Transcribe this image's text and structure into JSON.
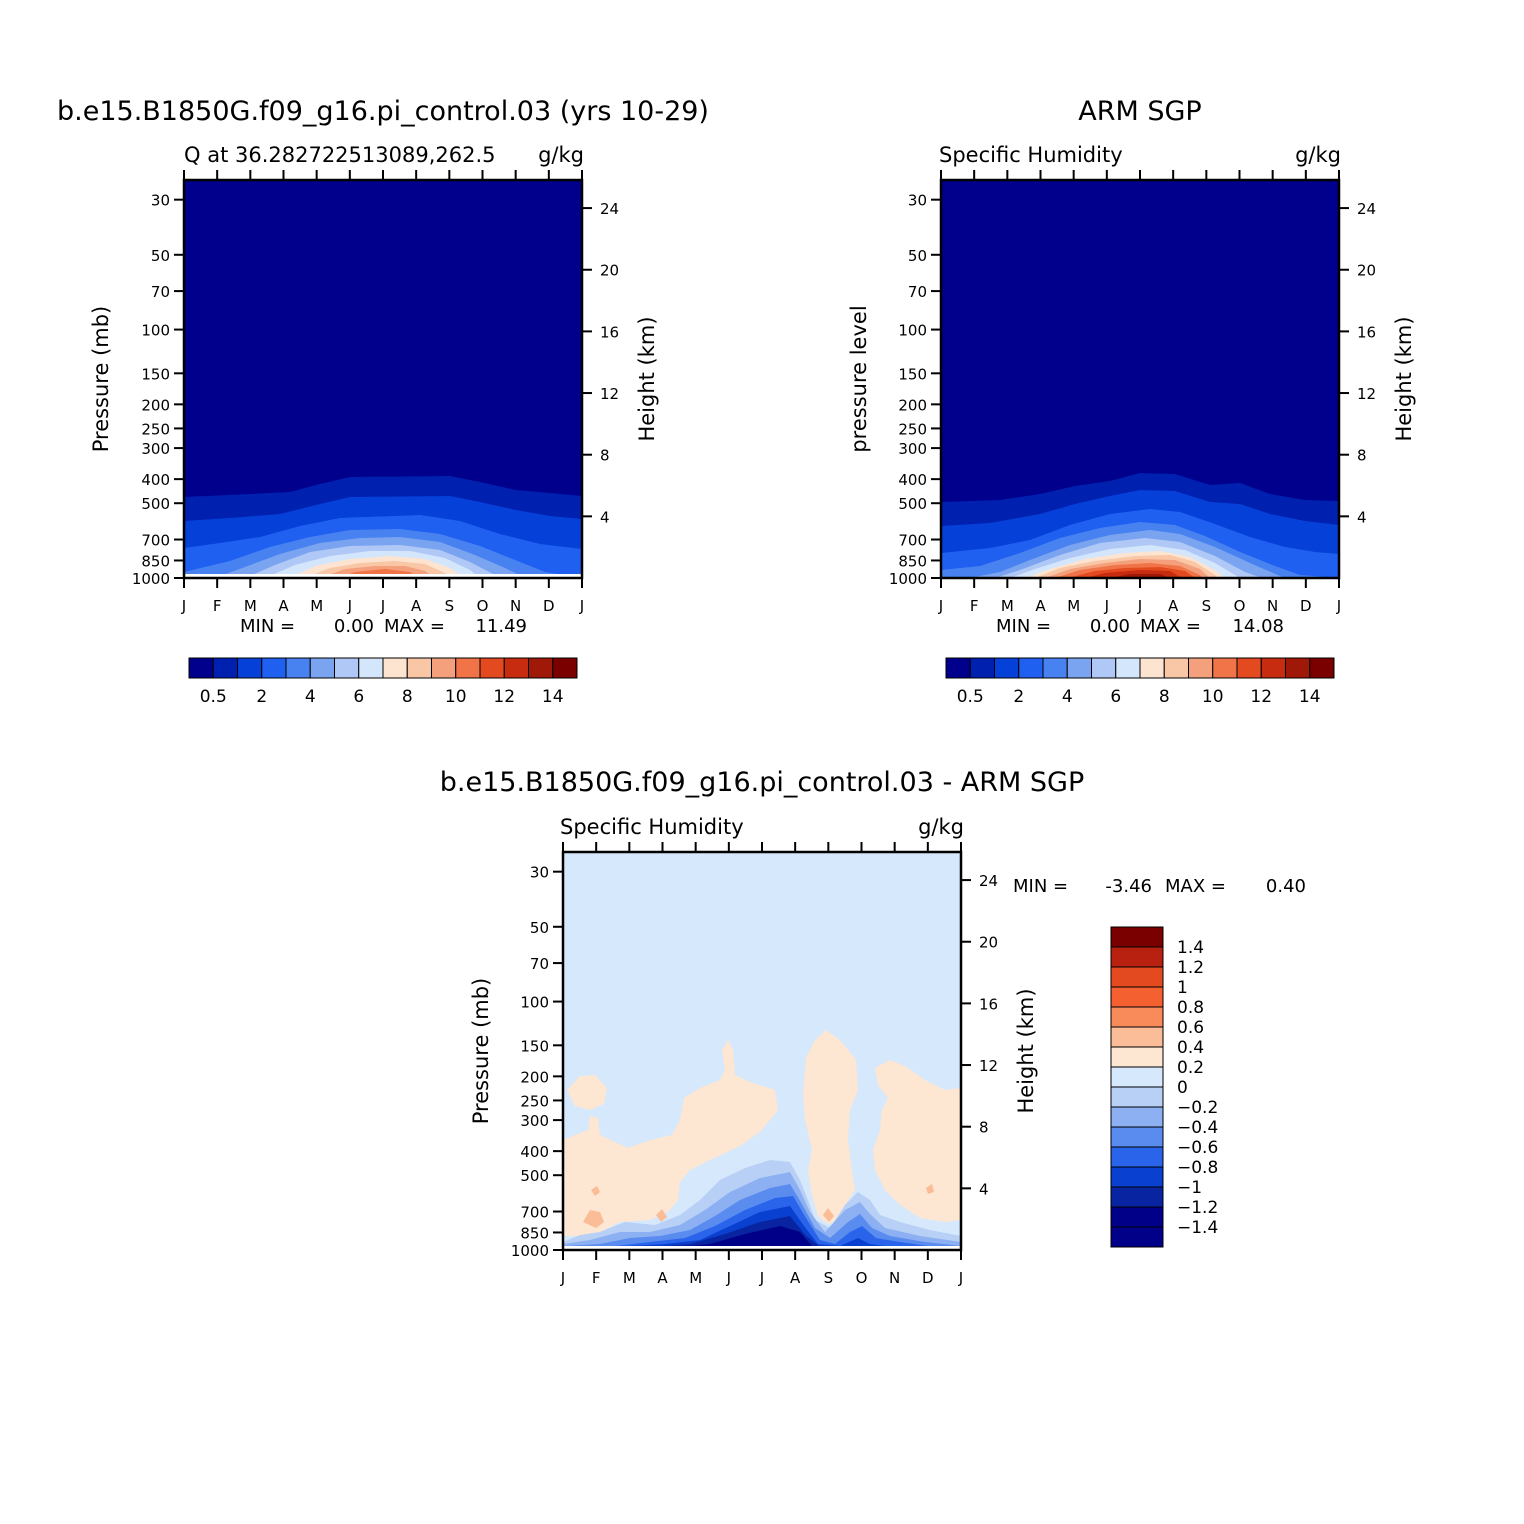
{
  "chart_data": [
    {
      "type": "heatmap",
      "title": "b.e15.B1850G.f09_g16.pi_control.03 (yrs 10-29)",
      "subtitle_left": "Q at 36.282722513089,262.5",
      "subtitle_right": "g/kg",
      "xlabel": "",
      "ylabel": "Pressure (mb)",
      "ylabel_right": "Height (km)",
      "x": [
        "J",
        "F",
        "M",
        "A",
        "M",
        "J",
        "J",
        "A",
        "S",
        "O",
        "N",
        "D",
        "J"
      ],
      "y_ticks": [
        "30",
        "50",
        "70",
        "100",
        "150",
        "200",
        "250",
        "300",
        "400",
        "500",
        "700",
        "850",
        "1000"
      ],
      "y_ticks_right": [
        "24",
        "20",
        "16",
        "12",
        "8",
        "4"
      ],
      "ylim": [
        1000,
        25
      ],
      "stats": {
        "min_label": "MIN =",
        "min": "0.00",
        "max_label": "MAX =",
        "max": "11.49"
      },
      "colorbar": {
        "ticks": [
          "0.5",
          "2",
          "4",
          "6",
          "8",
          "10",
          "12",
          "14"
        ]
      },
      "approx_surface_max_by_month": [
        3.5,
        4.5,
        5.5,
        7,
        9,
        11,
        11.49,
        10,
        8,
        6,
        4.5,
        3.5,
        3.5
      ]
    },
    {
      "type": "heatmap",
      "title": "ARM SGP",
      "subtitle_left": "Specific Humidity",
      "subtitle_right": "g/kg",
      "xlabel": "",
      "ylabel": "pressure level",
      "ylabel_right": "Height (km)",
      "x": [
        "J",
        "F",
        "M",
        "A",
        "M",
        "J",
        "J",
        "A",
        "S",
        "O",
        "N",
        "D",
        "J"
      ],
      "y_ticks": [
        "30",
        "50",
        "70",
        "100",
        "150",
        "200",
        "250",
        "300",
        "400",
        "500",
        "700",
        "850",
        "1000"
      ],
      "y_ticks_right": [
        "24",
        "20",
        "16",
        "12",
        "8",
        "4"
      ],
      "ylim": [
        1000,
        25
      ],
      "stats": {
        "min_label": "MIN =",
        "min": "0.00",
        "max_label": "MAX =",
        "max": "14.08"
      },
      "colorbar": {
        "ticks": [
          "0.5",
          "2",
          "4",
          "6",
          "8",
          "10",
          "12",
          "14"
        ]
      },
      "approx_surface_max_by_month": [
        4,
        5,
        6.5,
        8,
        10,
        12.5,
        14.08,
        13.5,
        11,
        8,
        6,
        4.5,
        4
      ]
    },
    {
      "type": "heatmap",
      "title": "b.e15.B1850G.f09_g16.pi_control.03 - ARM SGP",
      "subtitle_left": "Specific Humidity",
      "subtitle_right": "g/kg",
      "xlabel": "",
      "ylabel": "Pressure (mb)",
      "ylabel_right": "Height (km)",
      "x": [
        "J",
        "F",
        "M",
        "A",
        "M",
        "J",
        "J",
        "A",
        "S",
        "O",
        "N",
        "D",
        "J"
      ],
      "y_ticks": [
        "30",
        "50",
        "70",
        "100",
        "150",
        "200",
        "250",
        "300",
        "400",
        "500",
        "700",
        "850",
        "1000"
      ],
      "y_ticks_right": [
        "24",
        "20",
        "16",
        "12",
        "8",
        "4"
      ],
      "ylim": [
        1000,
        25
      ],
      "stats": {
        "min_label": "MIN =",
        "min": "-3.46",
        "max_label": "MAX =",
        "max": "0.40"
      },
      "colorbar": {
        "ticks": [
          "1.4",
          "1.2",
          "1",
          "0.8",
          "0.6",
          "0.4",
          "0.2",
          "0",
          "-0.2",
          "-0.4",
          "-0.6",
          "-0.8",
          "-1",
          "-1.2",
          "-1.4"
        ]
      }
    }
  ],
  "colors": {
    "sequential": [
      "#00008c",
      "#0020b0",
      "#0540d8",
      "#2060f0",
      "#4882f0",
      "#7aa4f0",
      "#b0c8f5",
      "#d4e6fc",
      "#fce4d0",
      "#f9c6a6",
      "#f5a07c",
      "#f07448",
      "#e44a20",
      "#c82c10",
      "#a01808",
      "#7a0000"
    ],
    "diverging": [
      "#7a0000",
      "#b82010",
      "#e44a20",
      "#f56030",
      "#f98a5a",
      "#fbbc98",
      "#fde6d2",
      "#d6e8fc",
      "#b8d0f6",
      "#8cb0f2",
      "#5a8cf0",
      "#2a64ea",
      "#0a40d0",
      "#0824a0",
      "#000088"
    ]
  }
}
